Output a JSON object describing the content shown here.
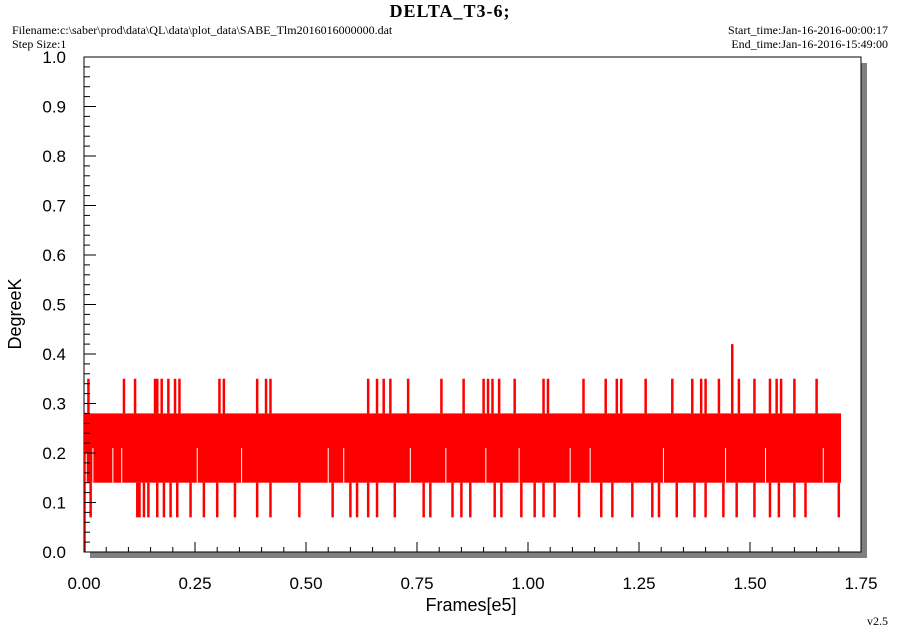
{
  "header": {
    "title": "DELTA_T3-6;",
    "filename": "Filename:c:\\saber\\prod\\data\\QL\\data\\plot_data\\SABE_Tlm2016016000000.dat",
    "step_size": "Step Size:1",
    "start_time": "Start_time:Jan-16-2016-00:00:17",
    "end_time": "End_time:Jan-16-2016-15:49:00",
    "version": "v2.5"
  },
  "chart_data": {
    "type": "line",
    "title": "DELTA_T3-6;",
    "xlabel": "Frames[e5]",
    "ylabel": "DegreeK",
    "xlim": [
      0.0,
      1.75
    ],
    "ylim": [
      0.0,
      1.0
    ],
    "x_ticks": [
      "0.00",
      "0.25",
      "0.50",
      "0.75",
      "1.00",
      "1.25",
      "1.50",
      "1.75"
    ],
    "y_ticks": [
      "0.0",
      "0.1",
      "0.2",
      "0.3",
      "0.4",
      "0.5",
      "0.6",
      "0.7",
      "0.8",
      "0.9",
      "1.0"
    ],
    "grid": false,
    "series": [
      {
        "color": "#ff0000",
        "x_range": [
          0.0,
          1.705
        ],
        "band_low": 0.14,
        "band_high": 0.28,
        "spikes_high": [
          {
            "x": 0.01,
            "y": 0.35
          },
          {
            "x": 0.09,
            "y": 0.35
          },
          {
            "x": 0.115,
            "y": 0.35
          },
          {
            "x": 0.16,
            "y": 0.35
          },
          {
            "x": 0.165,
            "y": 0.35
          },
          {
            "x": 0.175,
            "y": 0.35
          },
          {
            "x": 0.19,
            "y": 0.35
          },
          {
            "x": 0.205,
            "y": 0.35
          },
          {
            "x": 0.215,
            "y": 0.35
          },
          {
            "x": 0.305,
            "y": 0.35
          },
          {
            "x": 0.315,
            "y": 0.35
          },
          {
            "x": 0.39,
            "y": 0.35
          },
          {
            "x": 0.41,
            "y": 0.35
          },
          {
            "x": 0.42,
            "y": 0.35
          },
          {
            "x": 0.64,
            "y": 0.35
          },
          {
            "x": 0.66,
            "y": 0.35
          },
          {
            "x": 0.675,
            "y": 0.35
          },
          {
            "x": 0.69,
            "y": 0.35
          },
          {
            "x": 0.73,
            "y": 0.35
          },
          {
            "x": 0.805,
            "y": 0.35
          },
          {
            "x": 0.855,
            "y": 0.35
          },
          {
            "x": 0.9,
            "y": 0.35
          },
          {
            "x": 0.91,
            "y": 0.35
          },
          {
            "x": 0.92,
            "y": 0.35
          },
          {
            "x": 0.935,
            "y": 0.35
          },
          {
            "x": 0.97,
            "y": 0.35
          },
          {
            "x": 1.035,
            "y": 0.35
          },
          {
            "x": 1.045,
            "y": 0.35
          },
          {
            "x": 1.125,
            "y": 0.35
          },
          {
            "x": 1.175,
            "y": 0.35
          },
          {
            "x": 1.2,
            "y": 0.35
          },
          {
            "x": 1.21,
            "y": 0.35
          },
          {
            "x": 1.265,
            "y": 0.35
          },
          {
            "x": 1.325,
            "y": 0.35
          },
          {
            "x": 1.37,
            "y": 0.35
          },
          {
            "x": 1.39,
            "y": 0.35
          },
          {
            "x": 1.4,
            "y": 0.35
          },
          {
            "x": 1.43,
            "y": 0.35
          },
          {
            "x": 1.46,
            "y": 0.42
          },
          {
            "x": 1.475,
            "y": 0.35
          },
          {
            "x": 1.51,
            "y": 0.35
          },
          {
            "x": 1.545,
            "y": 0.35
          },
          {
            "x": 1.56,
            "y": 0.35
          },
          {
            "x": 1.57,
            "y": 0.35
          },
          {
            "x": 1.6,
            "y": 0.35
          },
          {
            "x": 1.65,
            "y": 0.35
          }
        ],
        "spikes_low": [
          {
            "x": 0.015,
            "y": 0.07
          },
          {
            "x": 0.12,
            "y": 0.07
          },
          {
            "x": 0.125,
            "y": 0.07
          },
          {
            "x": 0.135,
            "y": 0.07
          },
          {
            "x": 0.145,
            "y": 0.07
          },
          {
            "x": 0.165,
            "y": 0.07
          },
          {
            "x": 0.18,
            "y": 0.07
          },
          {
            "x": 0.195,
            "y": 0.07
          },
          {
            "x": 0.21,
            "y": 0.07
          },
          {
            "x": 0.24,
            "y": 0.07
          },
          {
            "x": 0.27,
            "y": 0.07
          },
          {
            "x": 0.3,
            "y": 0.07
          },
          {
            "x": 0.34,
            "y": 0.07
          },
          {
            "x": 0.39,
            "y": 0.07
          },
          {
            "x": 0.42,
            "y": 0.07
          },
          {
            "x": 0.485,
            "y": 0.07
          },
          {
            "x": 0.56,
            "y": 0.07
          },
          {
            "x": 0.6,
            "y": 0.07
          },
          {
            "x": 0.615,
            "y": 0.07
          },
          {
            "x": 0.64,
            "y": 0.07
          },
          {
            "x": 0.66,
            "y": 0.07
          },
          {
            "x": 0.7,
            "y": 0.07
          },
          {
            "x": 0.765,
            "y": 0.07
          },
          {
            "x": 0.78,
            "y": 0.07
          },
          {
            "x": 0.83,
            "y": 0.07
          },
          {
            "x": 0.85,
            "y": 0.07
          },
          {
            "x": 0.87,
            "y": 0.07
          },
          {
            "x": 0.925,
            "y": 0.07
          },
          {
            "x": 0.94,
            "y": 0.07
          },
          {
            "x": 0.985,
            "y": 0.07
          },
          {
            "x": 1.015,
            "y": 0.07
          },
          {
            "x": 1.035,
            "y": 0.07
          },
          {
            "x": 1.06,
            "y": 0.07
          },
          {
            "x": 1.115,
            "y": 0.07
          },
          {
            "x": 1.165,
            "y": 0.07
          },
          {
            "x": 1.19,
            "y": 0.07
          },
          {
            "x": 1.235,
            "y": 0.07
          },
          {
            "x": 1.28,
            "y": 0.07
          },
          {
            "x": 1.295,
            "y": 0.07
          },
          {
            "x": 1.335,
            "y": 0.07
          },
          {
            "x": 1.375,
            "y": 0.07
          },
          {
            "x": 1.4,
            "y": 0.07
          },
          {
            "x": 1.44,
            "y": 0.07
          },
          {
            "x": 1.47,
            "y": 0.07
          },
          {
            "x": 1.51,
            "y": 0.07
          },
          {
            "x": 1.545,
            "y": 0.07
          },
          {
            "x": 1.565,
            "y": 0.07
          },
          {
            "x": 1.6,
            "y": 0.07
          },
          {
            "x": 1.625,
            "y": 0.07
          },
          {
            "x": 1.7,
            "y": 0.07
          }
        ],
        "mid_drops": [
          {
            "x": 0.005,
            "y": 0.2
          },
          {
            "x": 0.02,
            "y": 0.21
          },
          {
            "x": 0.065,
            "y": 0.21
          },
          {
            "x": 0.085,
            "y": 0.21
          },
          {
            "x": 0.255,
            "y": 0.21
          },
          {
            "x": 0.355,
            "y": 0.21
          },
          {
            "x": 0.55,
            "y": 0.21
          },
          {
            "x": 0.585,
            "y": 0.21
          },
          {
            "x": 0.735,
            "y": 0.21
          },
          {
            "x": 0.815,
            "y": 0.21
          },
          {
            "x": 0.905,
            "y": 0.21
          },
          {
            "x": 0.98,
            "y": 0.21
          },
          {
            "x": 1.095,
            "y": 0.21
          },
          {
            "x": 1.14,
            "y": 0.21
          },
          {
            "x": 1.305,
            "y": 0.21
          },
          {
            "x": 1.445,
            "y": 0.21
          },
          {
            "x": 1.535,
            "y": 0.21
          },
          {
            "x": 1.665,
            "y": 0.21
          }
        ]
      }
    ]
  }
}
